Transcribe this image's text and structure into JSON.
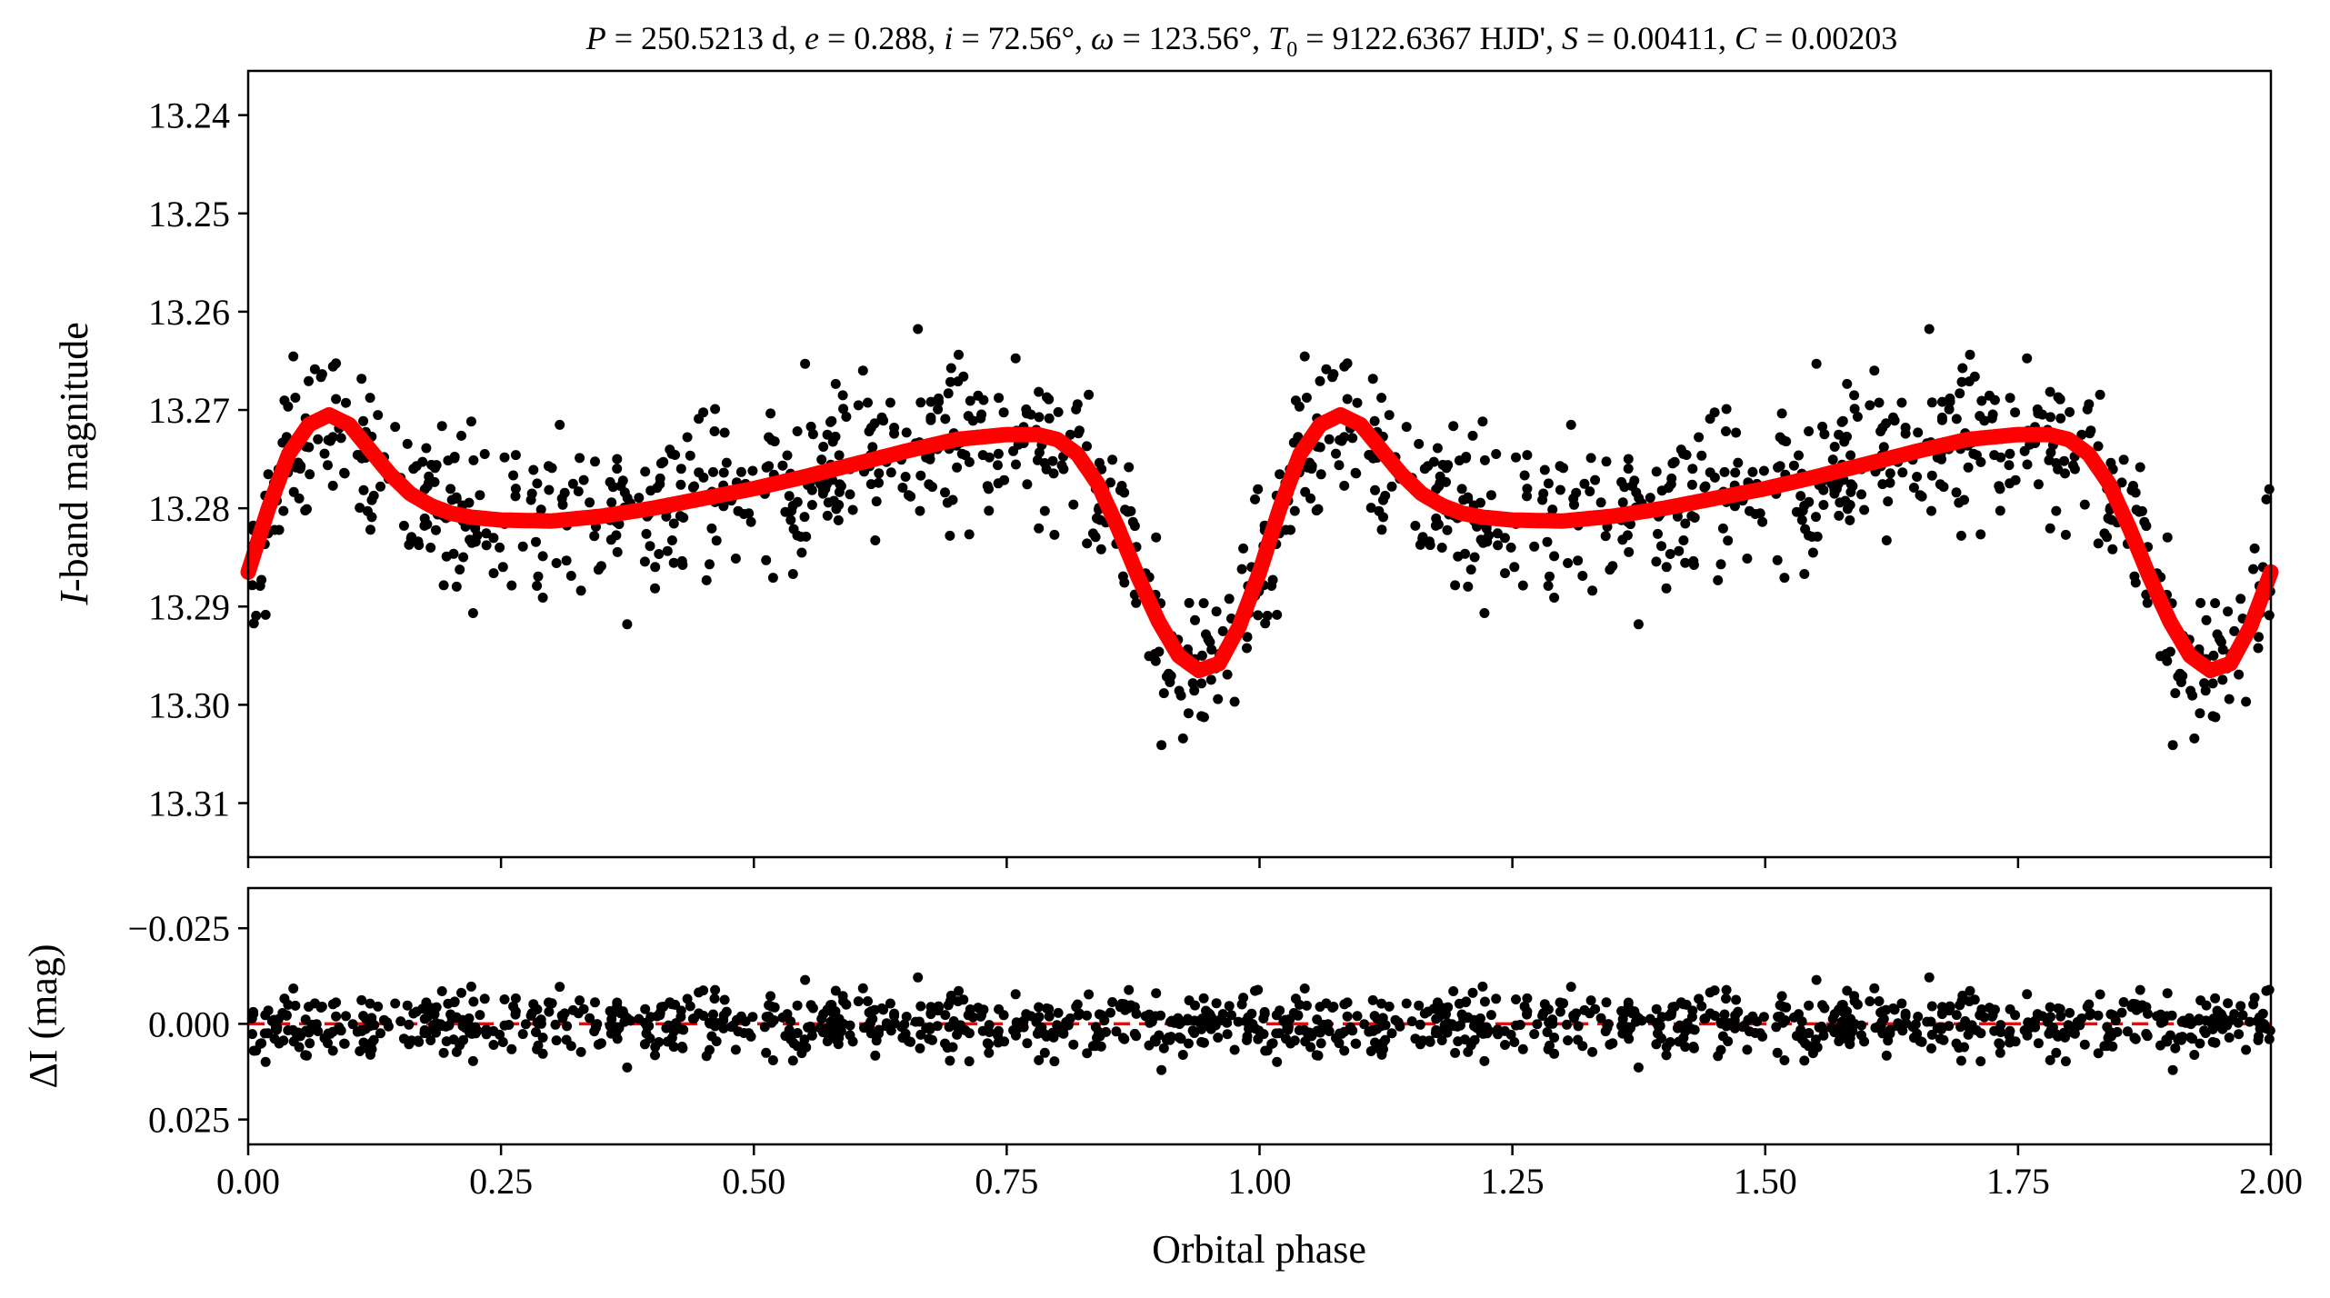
{
  "title_parts": {
    "p_sym": "P",
    "p_val": " = 250.5213 d, ",
    "e_sym": "e",
    "e_val": " = 0.288, ",
    "i_sym": "i",
    "i_val": " = 72.56°, ",
    "w_sym": "ω",
    "w_val": " = 123.56°, ",
    "t_sym": "T",
    "t_sub": "0",
    "t_val": " = 9122.6367 HJD', ",
    "s_sym": "S",
    "s_val": " = 0.00411, ",
    "c_sym": "C",
    "c_val": " = 0.00203"
  },
  "chart_data": [
    {
      "type": "scatter",
      "panel": "top",
      "ylabel_sym": "I",
      "ylabel_text": "-band magnitude",
      "xlim": [
        0,
        2
      ],
      "ylim": [
        13.3155,
        13.2355
      ],
      "y_inverted": true,
      "yticks": [
        "13.24",
        "13.25",
        "13.26",
        "13.27",
        "13.28",
        "13.29",
        "13.30",
        "13.31"
      ],
      "ytick_values": [
        13.24,
        13.25,
        13.26,
        13.27,
        13.28,
        13.29,
        13.3,
        13.31
      ],
      "xticks": [
        0,
        0.25,
        0.5,
        0.75,
        1.0,
        1.25,
        1.5,
        1.75,
        2.0
      ],
      "model_curve_color": "#ff0000",
      "point_color": "#000000",
      "model_phase": [
        0.0,
        0.02,
        0.04,
        0.06,
        0.08,
        0.1,
        0.12,
        0.14,
        0.16,
        0.18,
        0.2,
        0.22,
        0.25,
        0.3,
        0.35,
        0.4,
        0.45,
        0.5,
        0.55,
        0.6,
        0.65,
        0.7,
        0.75,
        0.78,
        0.8,
        0.82,
        0.84,
        0.86,
        0.88,
        0.9,
        0.92,
        0.94,
        0.96,
        0.98,
        1.0
      ],
      "model_mag": [
        13.2865,
        13.28,
        13.2745,
        13.2715,
        13.2705,
        13.2715,
        13.274,
        13.2765,
        13.2785,
        13.2797,
        13.2805,
        13.2809,
        13.2812,
        13.2813,
        13.2808,
        13.28,
        13.279,
        13.278,
        13.2768,
        13.2755,
        13.2742,
        13.273,
        13.2725,
        13.2725,
        13.273,
        13.2745,
        13.2775,
        13.282,
        13.287,
        13.2915,
        13.295,
        13.2965,
        13.2958,
        13.292,
        13.2865
      ]
    },
    {
      "type": "scatter",
      "panel": "bottom",
      "ylabel_sym": "ΔI",
      "ylabel_text": " (mag)",
      "xlabel": "Orbital phase",
      "xlim": [
        0,
        2
      ],
      "ylim": [
        0.0315,
        -0.0355
      ],
      "y_inverted": true,
      "yticks": [
        "−0.025",
        "0.000",
        "0.025"
      ],
      "ytick_values": [
        -0.025,
        0.0,
        0.025
      ],
      "xticks": [
        "0.00",
        "0.25",
        "0.50",
        "0.75",
        "1.00",
        "1.25",
        "1.50",
        "1.75",
        "2.00"
      ],
      "xtick_values": [
        0,
        0.25,
        0.5,
        0.75,
        1.0,
        1.25,
        1.5,
        1.75,
        2.0
      ],
      "reference_line": 0.0,
      "reference_line_color": "#ff0000",
      "point_color": "#000000"
    }
  ]
}
